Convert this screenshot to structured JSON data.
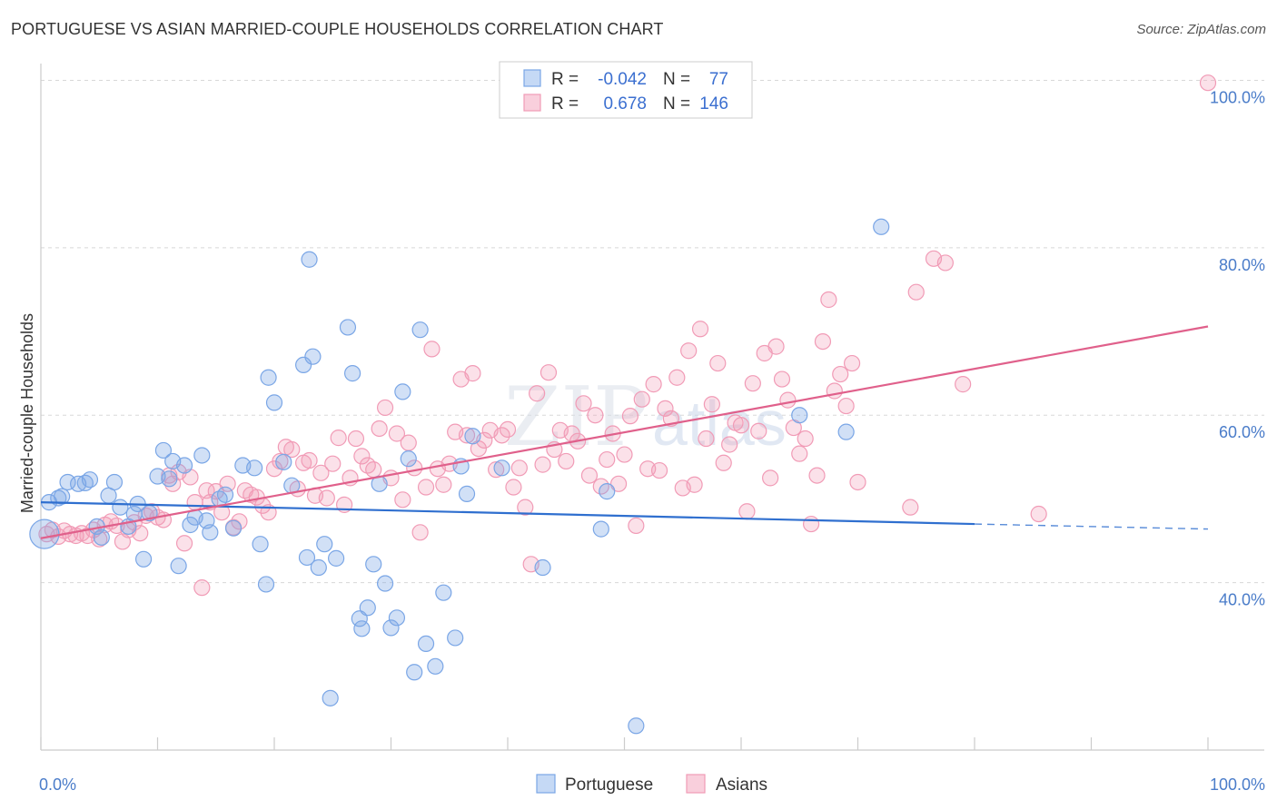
{
  "title": "PORTUGUESE VS ASIAN MARRIED-COUPLE HOUSEHOLDS CORRELATION CHART",
  "source": "Source: ZipAtlas.com",
  "watermark": {
    "zip": "ZIP",
    "atlas": "atlas"
  },
  "colors": {
    "portuguese": "#7aa6e6",
    "asians": "#f19bb6",
    "blue_line": "#2f6fcf",
    "pink_line": "#e0608b"
  },
  "legend": {
    "rows": [
      {
        "r_label": "R =",
        "r_value": "-0.042",
        "n_label": "N =",
        "n_value": "77"
      },
      {
        "r_label": "R =",
        "r_value": "0.678",
        "n_label": "N =",
        "n_value": "146"
      }
    ]
  },
  "chart_data": {
    "type": "scatter",
    "title": "PORTUGUESE VS ASIAN MARRIED-COUPLE HOUSEHOLDS CORRELATION CHART",
    "xlabel": "",
    "ylabel": "Married-couple Households",
    "xlim": [
      0,
      100
    ],
    "ylim": [
      20,
      102
    ],
    "x_tick_labels": [
      "0.0%",
      "100.0%"
    ],
    "y_ticks": [
      40,
      60,
      80,
      100
    ],
    "y_tick_labels": [
      "40.0%",
      "60.0%",
      "80.0%",
      "100.0%"
    ],
    "grid": true,
    "legend_position": "top-center",
    "series": [
      {
        "name": "Portuguese",
        "r": -0.042,
        "n": 77,
        "trend": {
          "x0": 0,
          "y0": 49.6,
          "x1": 80,
          "y1": 47.0,
          "dashed_to_x": 100,
          "dashed_y": 46.4
        },
        "points": [
          [
            0.3,
            45.8
          ],
          [
            0.7,
            49.6
          ],
          [
            1.5,
            50.1
          ],
          [
            1.8,
            50.3
          ],
          [
            2.3,
            52.0
          ],
          [
            3.2,
            51.8
          ],
          [
            3.8,
            51.9
          ],
          [
            4.2,
            52.3
          ],
          [
            4.8,
            46.7
          ],
          [
            5.2,
            45.4
          ],
          [
            5.8,
            50.4
          ],
          [
            6.3,
            52.0
          ],
          [
            6.8,
            49.0
          ],
          [
            7.5,
            46.7
          ],
          [
            8.0,
            48.2
          ],
          [
            8.3,
            49.4
          ],
          [
            8.8,
            42.8
          ],
          [
            9.3,
            48.3
          ],
          [
            10.0,
            52.7
          ],
          [
            10.5,
            55.8
          ],
          [
            11.0,
            52.4
          ],
          [
            11.3,
            54.5
          ],
          [
            11.8,
            42.0
          ],
          [
            12.3,
            54.0
          ],
          [
            12.8,
            46.9
          ],
          [
            13.2,
            47.8
          ],
          [
            13.8,
            55.2
          ],
          [
            14.2,
            47.4
          ],
          [
            14.5,
            46.0
          ],
          [
            15.3,
            50.0
          ],
          [
            15.8,
            50.5
          ],
          [
            16.5,
            46.5
          ],
          [
            17.3,
            54.0
          ],
          [
            18.3,
            53.7
          ],
          [
            18.8,
            44.6
          ],
          [
            19.3,
            39.8
          ],
          [
            19.5,
            64.5
          ],
          [
            20.0,
            61.5
          ],
          [
            20.8,
            54.4
          ],
          [
            21.5,
            51.6
          ],
          [
            22.5,
            66.0
          ],
          [
            22.8,
            43.0
          ],
          [
            23.0,
            78.6
          ],
          [
            23.3,
            67.0
          ],
          [
            23.8,
            41.8
          ],
          [
            24.3,
            44.6
          ],
          [
            24.8,
            26.2
          ],
          [
            25.3,
            42.9
          ],
          [
            26.3,
            70.5
          ],
          [
            26.7,
            65.0
          ],
          [
            27.3,
            35.7
          ],
          [
            27.5,
            34.5
          ],
          [
            28.0,
            37.0
          ],
          [
            28.5,
            42.2
          ],
          [
            29.0,
            51.8
          ],
          [
            29.5,
            39.9
          ],
          [
            30.0,
            34.6
          ],
          [
            30.5,
            35.8
          ],
          [
            31.0,
            62.8
          ],
          [
            31.5,
            54.8
          ],
          [
            32.0,
            29.3
          ],
          [
            32.5,
            70.2
          ],
          [
            33.0,
            32.7
          ],
          [
            33.8,
            30.0
          ],
          [
            34.5,
            38.8
          ],
          [
            35.5,
            33.4
          ],
          [
            36.0,
            53.9
          ],
          [
            36.5,
            50.6
          ],
          [
            37.0,
            57.5
          ],
          [
            39.5,
            53.7
          ],
          [
            43.0,
            41.8
          ],
          [
            48.0,
            46.4
          ],
          [
            48.5,
            50.9
          ],
          [
            51.0,
            22.9
          ],
          [
            65.0,
            60.0
          ],
          [
            69.0,
            58.0
          ],
          [
            72.0,
            82.5
          ]
        ]
      },
      {
        "name": "Asians",
        "r": 0.678,
        "n": 146,
        "trend": {
          "x0": 0,
          "y0": 45.3,
          "x1": 100,
          "y1": 70.6
        },
        "points": [
          [
            0.5,
            45.8
          ],
          [
            1.0,
            46.3
          ],
          [
            1.5,
            45.5
          ],
          [
            2.0,
            46.2
          ],
          [
            2.5,
            45.8
          ],
          [
            3.0,
            45.6
          ],
          [
            3.5,
            45.9
          ],
          [
            4.0,
            45.6
          ],
          [
            4.5,
            46.3
          ],
          [
            5.0,
            45.2
          ],
          [
            5.5,
            46.9
          ],
          [
            6.0,
            47.3
          ],
          [
            6.5,
            46.8
          ],
          [
            7.0,
            44.9
          ],
          [
            7.5,
            46.3
          ],
          [
            8.0,
            47.2
          ],
          [
            8.5,
            45.9
          ],
          [
            9.0,
            48.0
          ],
          [
            9.5,
            48.5
          ],
          [
            10.0,
            47.8
          ],
          [
            10.5,
            47.5
          ],
          [
            11.0,
            52.8
          ],
          [
            11.3,
            51.8
          ],
          [
            11.8,
            53.2
          ],
          [
            12.3,
            44.7
          ],
          [
            12.8,
            52.6
          ],
          [
            13.2,
            49.6
          ],
          [
            13.8,
            39.4
          ],
          [
            14.2,
            51.0
          ],
          [
            14.5,
            49.6
          ],
          [
            15.0,
            50.9
          ],
          [
            15.5,
            48.4
          ],
          [
            16.0,
            51.8
          ],
          [
            16.5,
            46.6
          ],
          [
            17.0,
            47.3
          ],
          [
            17.5,
            51.0
          ],
          [
            18.0,
            50.5
          ],
          [
            18.5,
            50.2
          ],
          [
            19.0,
            49.2
          ],
          [
            19.5,
            48.4
          ],
          [
            20.0,
            53.6
          ],
          [
            20.5,
            54.5
          ],
          [
            21.0,
            56.2
          ],
          [
            21.5,
            55.9
          ],
          [
            22.0,
            51.2
          ],
          [
            22.5,
            54.3
          ],
          [
            23.0,
            54.6
          ],
          [
            23.5,
            50.4
          ],
          [
            24.0,
            53.1
          ],
          [
            24.5,
            50.1
          ],
          [
            25.0,
            54.2
          ],
          [
            25.5,
            57.3
          ],
          [
            26.0,
            49.3
          ],
          [
            26.5,
            52.5
          ],
          [
            27.0,
            57.2
          ],
          [
            27.5,
            55.1
          ],
          [
            28.0,
            54.0
          ],
          [
            28.5,
            53.5
          ],
          [
            29.0,
            58.4
          ],
          [
            29.5,
            60.9
          ],
          [
            30.0,
            52.5
          ],
          [
            30.5,
            57.8
          ],
          [
            31.0,
            49.9
          ],
          [
            31.5,
            56.7
          ],
          [
            32.0,
            53.7
          ],
          [
            32.5,
            46.0
          ],
          [
            33.0,
            51.4
          ],
          [
            33.5,
            67.9
          ],
          [
            34.0,
            53.6
          ],
          [
            34.5,
            51.7
          ],
          [
            35.0,
            54.2
          ],
          [
            35.5,
            58.0
          ],
          [
            36.0,
            64.3
          ],
          [
            36.5,
            57.6
          ],
          [
            37.0,
            65.0
          ],
          [
            37.5,
            56.0
          ],
          [
            38.0,
            57.0
          ],
          [
            38.5,
            58.2
          ],
          [
            39.0,
            53.5
          ],
          [
            39.5,
            57.6
          ],
          [
            40.0,
            58.3
          ],
          [
            40.5,
            51.4
          ],
          [
            41.0,
            53.7
          ],
          [
            41.5,
            49.0
          ],
          [
            42.0,
            42.2
          ],
          [
            42.5,
            62.6
          ],
          [
            43.0,
            54.1
          ],
          [
            43.5,
            65.1
          ],
          [
            44.0,
            55.9
          ],
          [
            44.5,
            58.2
          ],
          [
            45.0,
            54.5
          ],
          [
            45.5,
            57.8
          ],
          [
            46.0,
            56.9
          ],
          [
            46.5,
            61.4
          ],
          [
            47.0,
            52.8
          ],
          [
            47.5,
            60.0
          ],
          [
            48.0,
            51.5
          ],
          [
            48.5,
            54.7
          ],
          [
            49.0,
            57.8
          ],
          [
            49.5,
            51.8
          ],
          [
            50.0,
            55.3
          ],
          [
            50.5,
            59.9
          ],
          [
            51.0,
            46.8
          ],
          [
            51.5,
            61.9
          ],
          [
            52.0,
            53.6
          ],
          [
            52.5,
            63.7
          ],
          [
            53.0,
            53.4
          ],
          [
            53.5,
            60.8
          ],
          [
            54.0,
            59.6
          ],
          [
            54.5,
            64.5
          ],
          [
            55.0,
            51.3
          ],
          [
            55.5,
            67.7
          ],
          [
            56.0,
            51.7
          ],
          [
            56.5,
            70.3
          ],
          [
            57.0,
            57.2
          ],
          [
            57.5,
            61.3
          ],
          [
            58.0,
            66.2
          ],
          [
            58.5,
            54.3
          ],
          [
            59.0,
            56.5
          ],
          [
            59.5,
            59.1
          ],
          [
            60.0,
            58.8
          ],
          [
            60.5,
            48.5
          ],
          [
            61.0,
            63.8
          ],
          [
            61.5,
            58.1
          ],
          [
            62.0,
            67.4
          ],
          [
            62.5,
            52.5
          ],
          [
            63.0,
            68.2
          ],
          [
            63.5,
            64.3
          ],
          [
            64.0,
            61.8
          ],
          [
            64.5,
            58.5
          ],
          [
            65.0,
            55.4
          ],
          [
            65.5,
            57.2
          ],
          [
            66.0,
            47.0
          ],
          [
            66.5,
            52.8
          ],
          [
            67.0,
            68.8
          ],
          [
            67.5,
            73.8
          ],
          [
            68.0,
            62.9
          ],
          [
            68.5,
            64.9
          ],
          [
            69.0,
            61.1
          ],
          [
            69.5,
            66.2
          ],
          [
            70.0,
            52.0
          ],
          [
            74.5,
            49.0
          ],
          [
            75.0,
            74.7
          ],
          [
            76.5,
            78.7
          ],
          [
            77.5,
            78.2
          ],
          [
            79.0,
            63.7
          ],
          [
            85.5,
            48.2
          ],
          [
            100.0,
            99.7
          ]
        ]
      }
    ]
  },
  "bottom_legend": [
    "Portuguese",
    "Asians"
  ]
}
